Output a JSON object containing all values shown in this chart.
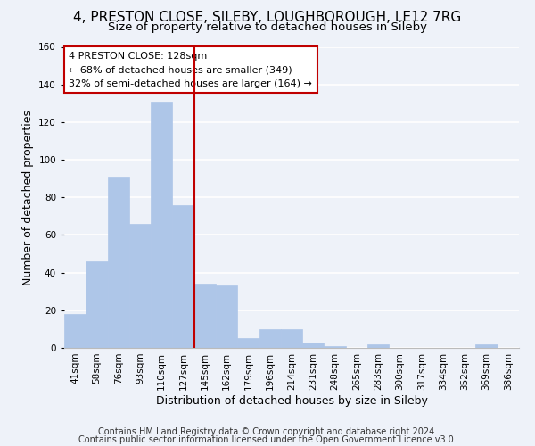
{
  "title": "4, PRESTON CLOSE, SILEBY, LOUGHBOROUGH, LE12 7RG",
  "subtitle": "Size of property relative to detached houses in Sileby",
  "xlabel": "Distribution of detached houses by size in Sileby",
  "ylabel": "Number of detached properties",
  "bar_labels": [
    "41sqm",
    "58sqm",
    "76sqm",
    "93sqm",
    "110sqm",
    "127sqm",
    "145sqm",
    "162sqm",
    "179sqm",
    "196sqm",
    "214sqm",
    "231sqm",
    "248sqm",
    "265sqm",
    "283sqm",
    "300sqm",
    "317sqm",
    "334sqm",
    "352sqm",
    "369sqm",
    "386sqm"
  ],
  "bar_values": [
    18,
    46,
    91,
    66,
    131,
    76,
    34,
    33,
    5,
    10,
    10,
    3,
    1,
    0,
    2,
    0,
    0,
    0,
    0,
    2,
    0
  ],
  "bar_color": "#aec6e8",
  "highlight_bar_index": 5,
  "highlight_color": "#c00000",
  "ylim": [
    0,
    160
  ],
  "yticks": [
    0,
    20,
    40,
    60,
    80,
    100,
    120,
    140,
    160
  ],
  "annotation_line1": "4 PRESTON CLOSE: 128sqm",
  "annotation_line2": "← 68% of detached houses are smaller (349)",
  "annotation_line3": "32% of semi-detached houses are larger (164) →",
  "annotation_box_color": "#c00000",
  "footer_line1": "Contains HM Land Registry data © Crown copyright and database right 2024.",
  "footer_line2": "Contains public sector information licensed under the Open Government Licence v3.0.",
  "background_color": "#eef2f9",
  "grid_color": "#ffffff",
  "title_fontsize": 11,
  "subtitle_fontsize": 9.5,
  "axis_label_fontsize": 9,
  "tick_fontsize": 7.5,
  "annotation_fontsize": 8,
  "footer_fontsize": 7
}
